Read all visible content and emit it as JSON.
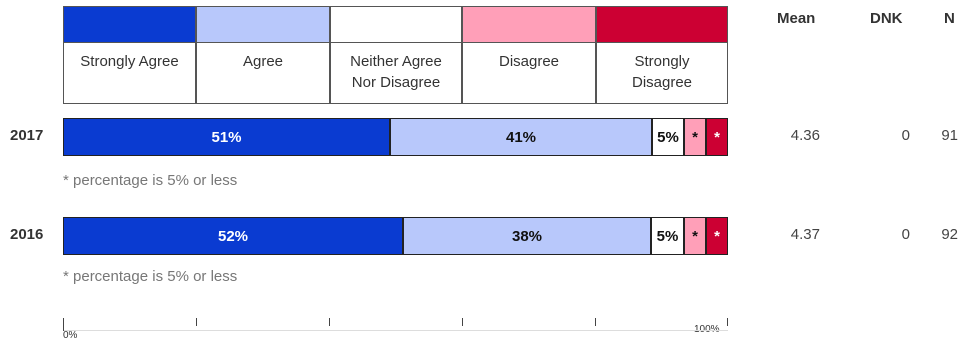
{
  "legend": {
    "categories": [
      {
        "label": "Strongly Agree",
        "color": "#0a3bd1"
      },
      {
        "label": "Agree",
        "color": "#b8c8fb"
      },
      {
        "label": "Neither Agree\nNor Disagree",
        "color": "#ffffff"
      },
      {
        "label": "Disagree",
        "color": "#ff9fb8"
      },
      {
        "label": "Strongly\nDisagree",
        "color": "#cc0033"
      }
    ]
  },
  "columns": {
    "mean": "Mean",
    "dnk": "DNK",
    "n": "N"
  },
  "chart_data": {
    "type": "bar",
    "stacked": true,
    "orientation": "horizontal",
    "categories": [
      "2017",
      "2016"
    ],
    "series": [
      {
        "name": "Strongly Agree",
        "values": [
          51,
          52
        ],
        "labels": [
          "51%",
          "52%"
        ]
      },
      {
        "name": "Agree",
        "values": [
          41,
          38
        ],
        "labels": [
          "41%",
          "38%"
        ]
      },
      {
        "name": "Neither Agree Nor Disagree",
        "values": [
          5,
          5
        ],
        "labels": [
          "5%",
          "5%"
        ]
      },
      {
        "name": "Disagree",
        "values": [
          3,
          3
        ],
        "labels": [
          "*",
          "*"
        ]
      },
      {
        "name": "Strongly Disagree",
        "values": [
          3,
          3
        ],
        "labels": [
          "*",
          "*"
        ]
      }
    ],
    "xlim": [
      0,
      100
    ],
    "axis_labels": [
      "0%",
      "100%"
    ]
  },
  "rows": [
    {
      "year": "2017",
      "mean": "4.36",
      "dnk": "0",
      "n": "91",
      "note": "* percentage is 5% or less"
    },
    {
      "year": "2016",
      "mean": "4.37",
      "dnk": "0",
      "n": "92",
      "note": "* percentage is 5% or less"
    }
  ]
}
